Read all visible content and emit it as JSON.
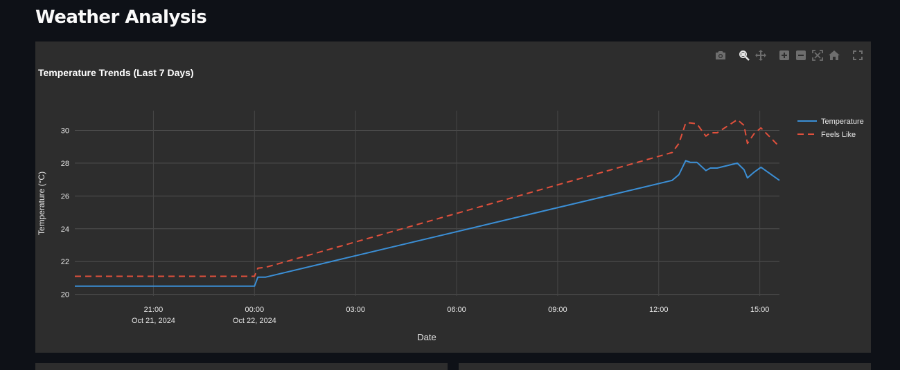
{
  "page": {
    "title": "Weather Analysis"
  },
  "modebar": {
    "buttons": [
      "camera-icon",
      "zoom-icon",
      "pan-icon",
      "zoom-in-icon",
      "zoom-out-icon",
      "autoscale-icon",
      "reset-axes-icon",
      "fullscreen-icon"
    ]
  },
  "colors": {
    "temperature": "#3b8fd6",
    "feels_like": "#e1503c",
    "background": "#0e1117",
    "plot_background": "#2d2d2d"
  },
  "chart_data": {
    "type": "line",
    "title": "Temperature Trends (Last 7 Days)",
    "xlabel": "Date",
    "ylabel": "Temperature (°C)",
    "ylim": [
      19.9,
      31.2
    ],
    "xlim": [
      "2024-10-21 18:40",
      "2024-10-22 15:35"
    ],
    "yticks": [
      20,
      22,
      24,
      26,
      28,
      30
    ],
    "xticks": [
      {
        "at": "2024-10-21 21:00",
        "line1": "21:00",
        "line2": "Oct 21, 2024"
      },
      {
        "at": "2024-10-22 00:00",
        "line1": "00:00",
        "line2": "Oct 22, 2024"
      },
      {
        "at": "2024-10-22 03:00",
        "line1": "03:00",
        "line2": ""
      },
      {
        "at": "2024-10-22 06:00",
        "line1": "06:00",
        "line2": ""
      },
      {
        "at": "2024-10-22 09:00",
        "line1": "09:00",
        "line2": ""
      },
      {
        "at": "2024-10-22 12:00",
        "line1": "12:00",
        "line2": ""
      },
      {
        "at": "2024-10-22 15:00",
        "line1": "15:00",
        "line2": ""
      }
    ],
    "grid": true,
    "legend_position": "top-right",
    "series": [
      {
        "name": "Temperature",
        "dash": "solid",
        "x": [
          "2024-10-21 18:40",
          "2024-10-22 00:00",
          "2024-10-22 00:06",
          "2024-10-22 00:20",
          "2024-10-22 12:24",
          "2024-10-22 12:36",
          "2024-10-22 12:48",
          "2024-10-22 12:56",
          "2024-10-22 13:08",
          "2024-10-22 13:24",
          "2024-10-22 13:32",
          "2024-10-22 13:44",
          "2024-10-22 14:20",
          "2024-10-22 14:32",
          "2024-10-22 14:38",
          "2024-10-22 14:50",
          "2024-10-22 15:02",
          "2024-10-22 15:35"
        ],
        "y": [
          20.5,
          20.5,
          21.05,
          21.05,
          26.95,
          27.3,
          28.15,
          28.05,
          28.05,
          27.55,
          27.7,
          27.7,
          28.0,
          27.6,
          27.1,
          27.45,
          27.75,
          26.95
        ]
      },
      {
        "name": "Feels Like",
        "dash": "dashed",
        "x": [
          "2024-10-21 18:40",
          "2024-10-22 00:00",
          "2024-10-22 00:06",
          "2024-10-22 00:20",
          "2024-10-22 12:24",
          "2024-10-22 12:36",
          "2024-10-22 12:48",
          "2024-10-22 12:56",
          "2024-10-22 13:08",
          "2024-10-22 13:24",
          "2024-10-22 13:32",
          "2024-10-22 13:44",
          "2024-10-22 14:20",
          "2024-10-22 14:32",
          "2024-10-22 14:38",
          "2024-10-22 14:50",
          "2024-10-22 15:02",
          "2024-10-22 15:35"
        ],
        "y": [
          21.1,
          21.1,
          21.6,
          21.65,
          28.65,
          29.2,
          30.45,
          30.45,
          30.4,
          29.65,
          29.85,
          29.85,
          30.65,
          30.3,
          29.2,
          29.8,
          30.15,
          29.0
        ]
      }
    ]
  }
}
